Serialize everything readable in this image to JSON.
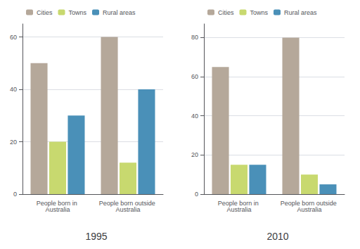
{
  "chart_data": [
    {
      "type": "bar",
      "title": "1995",
      "categories": [
        "People born in Australia",
        "People born outside Australia"
      ],
      "series": [
        {
          "name": "Cities",
          "color": "#b5a89a",
          "values": [
            50,
            60
          ]
        },
        {
          "name": "Towns",
          "color": "#c8d96f",
          "values": [
            20,
            12
          ]
        },
        {
          "name": "Rural areas",
          "color": "#4a90b8",
          "values": [
            30,
            40
          ]
        }
      ],
      "ylim": [
        0,
        65
      ],
      "yticks": [
        0,
        20,
        40,
        60
      ],
      "grid": true,
      "legend": "top left"
    },
    {
      "type": "bar",
      "title": "2010",
      "categories": [
        "People born in Australia",
        "People born outside Australia"
      ],
      "series": [
        {
          "name": "Cities",
          "color": "#b5a89a",
          "values": [
            65,
            80
          ]
        },
        {
          "name": "Towns",
          "color": "#c8d96f",
          "values": [
            15,
            10
          ]
        },
        {
          "name": "Rural areas",
          "color": "#4a90b8",
          "values": [
            15,
            5
          ]
        }
      ],
      "ylim": [
        0,
        87
      ],
      "yticks": [
        0,
        20,
        40,
        60,
        80
      ],
      "grid": true,
      "legend": "top left"
    }
  ]
}
